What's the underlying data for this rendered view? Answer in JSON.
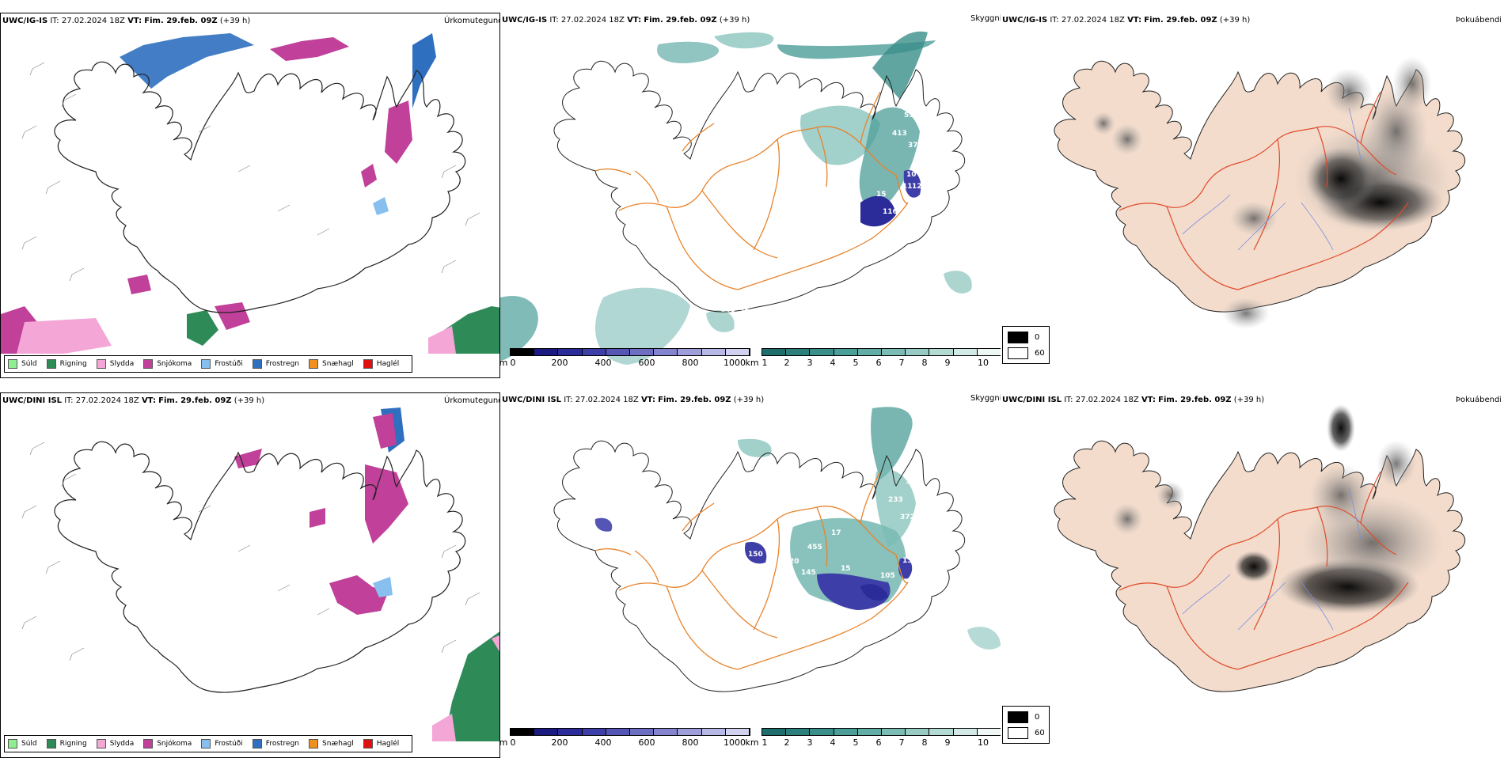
{
  "rows": [
    {
      "model": "UWC/IG-IS",
      "it_label": "IT:",
      "it_value": "27.02.2024 18Z",
      "vt_label": "VT:",
      "vt_value": "Fim. 29.feb. 09Z",
      "lead": "(+39 h)",
      "precip_title": "Úrkomutegund",
      "vis_title": "Skyggni",
      "cloud_title": "Þokuábendi",
      "vis_labels": [
        "534",
        "413",
        "37",
        "10",
        "11",
        "12",
        "15",
        "116",
        "648",
        "37"
      ]
    },
    {
      "model": "UWC/DINI ISL",
      "it_label": "IT:",
      "it_value": "27.02.2024 18Z",
      "vt_label": "VT:",
      "vt_value": "Fim. 29.feb. 09Z",
      "lead": "(+39 h)",
      "precip_title": "Úrkomutegund",
      "vis_title": "Skyggni",
      "cloud_title": "Þokuábendi",
      "vis_labels": [
        "102",
        "233",
        "372",
        "17",
        "455",
        "150",
        "20",
        "145",
        "15",
        "13",
        "105"
      ]
    }
  ],
  "precip_legend": [
    {
      "label": "Súld",
      "color": "#90ee90"
    },
    {
      "label": "Rigning",
      "color": "#2e8b57"
    },
    {
      "label": "Slydda",
      "color": "#f4a6d7"
    },
    {
      "label": "Snjókoma",
      "color": "#c0409a"
    },
    {
      "label": "Frostúði",
      "color": "#87bfee"
    },
    {
      "label": "Frostregn",
      "color": "#2f6fc0"
    },
    {
      "label": "Snæhagl",
      "color": "#f0901e"
    },
    {
      "label": "Haglél",
      "color": "#e01010"
    }
  ],
  "vis_legend": {
    "m_unit": "m",
    "m_ticks": [
      "0",
      "200",
      "400",
      "600",
      "800",
      "1000"
    ],
    "m_colors": [
      "#000000",
      "#1a1a80",
      "#2b2b99",
      "#3e3ea8",
      "#5555b5",
      "#6d6dc2",
      "#8585cf",
      "#9e9edb",
      "#b8b8e6",
      "#d2d2f0"
    ],
    "km_unit": "km",
    "km_ticks": [
      "1",
      "2",
      "3",
      "4",
      "5",
      "6",
      "7",
      "8",
      "9",
      "10"
    ],
    "km_colors": [
      "#1f6e6b",
      "#2c7f7b",
      "#3a8f8a",
      "#4c9e98",
      "#62ada6",
      "#7bbcb5",
      "#97cbc4",
      "#b4dad4",
      "#d2e9e5",
      "#eef7f5"
    ]
  },
  "cloud_legend": [
    {
      "label": "0",
      "color": "#000000"
    },
    {
      "label": "60",
      "color": "#ffffff"
    }
  ]
}
